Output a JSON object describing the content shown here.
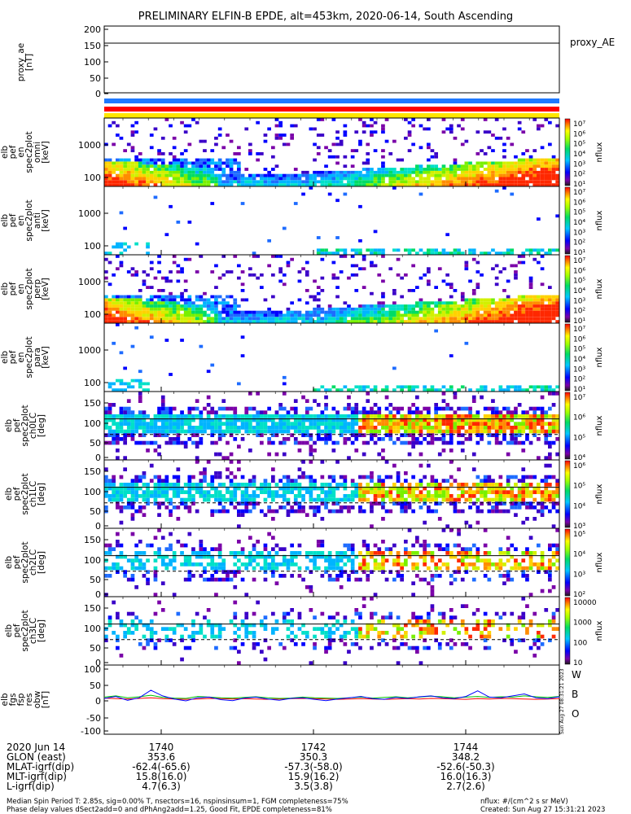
{
  "title": "PRELIMINARY ELFIN-B EPDE, alt=453km, 2020-06-14, South Ascending",
  "chart_data": [
    {
      "type": "line",
      "panel": "proxy_ae",
      "ylabel": "proxy_ae [nT]",
      "yticks": [
        "200",
        "150",
        "100",
        "50",
        "0"
      ],
      "ylim": [
        -10,
        205
      ],
      "series": [
        {
          "name": "proxy_AE",
          "values": [
            150,
            150
          ]
        }
      ]
    },
    {
      "type": "heatmap",
      "panel": "flag bars",
      "colors": [
        "#1E78FF",
        "#FF0000",
        "#FFE600"
      ]
    },
    {
      "type": "heatmap",
      "panel": "elb pef en spec2plot omni",
      "ylabel": "elb pef en spec2plot omni [keV]",
      "yticks": [
        "1000",
        "100"
      ],
      "zlabel": "nflux",
      "zticks": [
        "10⁷",
        "10⁶",
        "10⁵",
        "10⁴",
        "10³",
        "10²",
        "10¹"
      ]
    },
    {
      "type": "heatmap",
      "panel": "elb pef en spec2plot anti",
      "ylabel": "elb pef en spec2plot anti [keV]",
      "yticks": [
        "1000",
        "100"
      ],
      "zlabel": "nflux",
      "zticks": [
        "10⁷",
        "10⁶",
        "10⁵",
        "10⁴",
        "10³",
        "10²",
        "10¹"
      ]
    },
    {
      "type": "heatmap",
      "panel": "elb pef en spec2plot perp",
      "ylabel": "elb pef en spec2plot perp [keV]",
      "yticks": [
        "1000",
        "100"
      ],
      "zlabel": "nflux",
      "zticks": [
        "10⁷",
        "10⁶",
        "10⁵",
        "10⁴",
        "10³",
        "10²",
        "10¹"
      ]
    },
    {
      "type": "heatmap",
      "panel": "elb pef en spec2plot para",
      "ylabel": "elb pef en spec2plot para [keV]",
      "yticks": [
        "1000",
        "100"
      ],
      "zlabel": "nflux",
      "zticks": [
        "10⁷",
        "10⁶",
        "10⁵",
        "10⁴",
        "10³",
        "10²",
        "10¹"
      ]
    },
    {
      "type": "heatmap",
      "panel": "elb pef spec2plot ch0LC",
      "ylabel": "elb pef spec2plot ch0LC [deg]",
      "yticks": [
        "150",
        "100",
        "50",
        "0"
      ],
      "ylim": [
        0,
        180
      ],
      "zlabel": "nflux",
      "zticks": [
        "10⁷",
        "10⁶",
        "10⁵",
        "10⁴"
      ],
      "lines": [
        {
          "style": "solid",
          "y": 108
        },
        {
          "style": "dashed",
          "y": 67
        }
      ]
    },
    {
      "type": "heatmap",
      "panel": "elb pef spec2plot ch1LC",
      "ylabel": "elb pef spec2plot ch1LC [deg]",
      "yticks": [
        "150",
        "100",
        "50",
        "0"
      ],
      "ylim": [
        0,
        180
      ],
      "zlabel": "nflux",
      "zticks": [
        "10⁶",
        "10⁵",
        "10⁴",
        "10³"
      ],
      "lines": [
        {
          "style": "solid",
          "y": 108
        },
        {
          "style": "dashed",
          "y": 67
        }
      ]
    },
    {
      "type": "heatmap",
      "panel": "elb pef spec2plot ch2LC",
      "ylabel": "elb pef spec2plot ch2LC [deg]",
      "yticks": [
        "150",
        "100",
        "50",
        "0"
      ],
      "ylim": [
        0,
        180
      ],
      "zlabel": "nflux",
      "zticks": [
        "10⁵",
        "10⁴",
        "10³",
        "10²"
      ],
      "lines": [
        {
          "style": "solid",
          "y": 108
        },
        {
          "style": "dashed",
          "y": 67
        }
      ]
    },
    {
      "type": "heatmap",
      "panel": "elb pef spec2plot ch3LC",
      "ylabel": "elb pef spec2plot ch3LC [deg]",
      "yticks": [
        "150",
        "100",
        "50",
        "0"
      ],
      "ylim": [
        0,
        180
      ],
      "zlabel": "nflux",
      "zticks": [
        "10000",
        "1000",
        "100",
        "10"
      ],
      "lines": [
        {
          "style": "solid",
          "y": 108
        },
        {
          "style": "dashed",
          "y": 67
        }
      ]
    },
    {
      "type": "line",
      "panel": "elb fgs fsp res obw",
      "ylabel": "elb fgs fsp res obw [nT]",
      "yticks": [
        "100",
        "50",
        "0",
        "-50",
        "-100"
      ],
      "ylim": [
        -110,
        110
      ],
      "legend": [
        "W",
        "B",
        "O"
      ],
      "legend_colors": [
        "#FF0000",
        "#00C000",
        "#0000FF"
      ],
      "series": [
        {
          "name": "W",
          "values": [
            5,
            3,
            2,
            4,
            6,
            3,
            2,
            1,
            2,
            4,
            3,
            2,
            3,
            2,
            1,
            2,
            3,
            4,
            3,
            2,
            1,
            2,
            3,
            2,
            1,
            2,
            3,
            2,
            4,
            3,
            2,
            1,
            3,
            2,
            4,
            3,
            2,
            1,
            2,
            3
          ]
        },
        {
          "name": "B",
          "values": [
            8,
            12,
            6,
            9,
            14,
            7,
            5,
            4,
            10,
            8,
            6,
            5,
            7,
            9,
            6,
            4,
            5,
            8,
            6,
            5,
            4,
            6,
            8,
            5,
            7,
            9,
            6,
            8,
            11,
            9,
            6,
            8,
            10,
            7,
            9,
            8,
            12,
            9,
            7,
            10
          ]
        },
        {
          "name": "O",
          "values": [
            4,
            10,
            -2,
            6,
            30,
            12,
            2,
            -4,
            6,
            8,
            0,
            -3,
            5,
            8,
            2,
            -2,
            4,
            6,
            1,
            -3,
            2,
            6,
            10,
            3,
            1,
            7,
            4,
            9,
            12,
            6,
            3,
            10,
            28,
            8,
            6,
            12,
            18,
            6,
            3,
            9
          ]
        }
      ]
    }
  ],
  "flux_units": "nflux",
  "right_side_label": "proxy_AE",
  "time_axis": {
    "date_label": "2020 Jun 14",
    "rows": [
      {
        "label": "",
        "values": [
          "1740",
          "1742",
          "1744"
        ]
      },
      {
        "label": "GLON (east)",
        "values": [
          "353.6",
          "350.3",
          "348.2"
        ]
      },
      {
        "label": "MLAT-igrf(dip)",
        "values": [
          "-62.4(-65.6)",
          "-57.3(-58.0)",
          "-52.6(-50.3)"
        ]
      },
      {
        "label": "MLT-igrf(dip)",
        "values": [
          "15.8(16.0)",
          "15.9(16.2)",
          "16.0(16.3)"
        ]
      },
      {
        "label": "L-igrf(dip)",
        "values": [
          "4.7(6.3)",
          "3.5(3.8)",
          "2.7(2.6)"
        ]
      }
    ]
  },
  "footer": {
    "line1": "Median Spin Period T: 2.85s, sig=0.00% T, nsectors=16, nspinsinsum=1, FGM completeness=75%",
    "line2": "Phase delay values dSect2add=0 and dPhAng2add=1.25, Good Fit, EPDE completeness=81%",
    "units": "nflux: #/(cm^2 s sr MeV)",
    "created": "Created: Sun Aug 27 15:31:21 2023",
    "stamp": "Sun Aug 27 08:31:21 2023"
  }
}
